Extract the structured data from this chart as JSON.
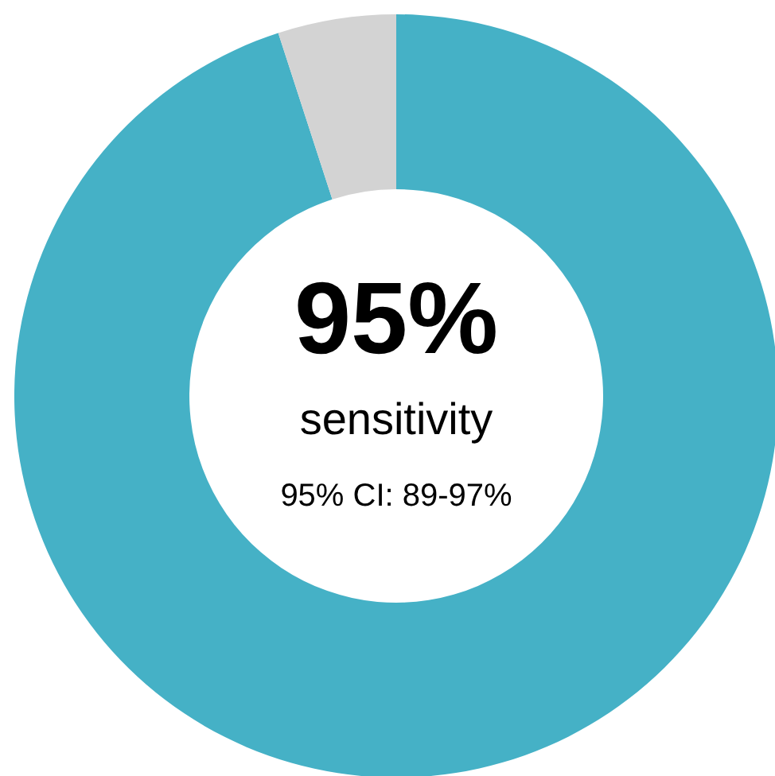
{
  "chart_data": {
    "type": "donut",
    "categories": [
      null,
      null
    ],
    "values": [
      95,
      5
    ],
    "colors": [
      "#45b1c6",
      "#d3d3d3"
    ],
    "annotations": [
      "95%",
      "sensitivity",
      "95% CI: 89-97%"
    ]
  }
}
